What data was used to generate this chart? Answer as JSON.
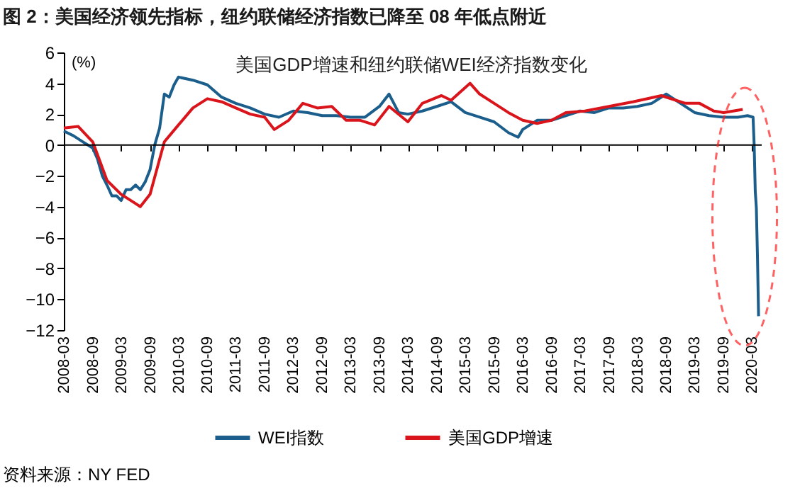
{
  "chart_data": {
    "type": "line",
    "title": "图 2：美国经济领先指标，纽约联储经济指数已降至 08 年低点附近",
    "subtitle": "美国GDP增速和纽约联储WEI经济指数变化",
    "ylabel": "(%)",
    "annotations": [
      "资料来源：NY FED"
    ],
    "xlim": [
      "2008-03-01",
      "2020-05-01"
    ],
    "xticks": [
      "2008-03",
      "2008-09",
      "2009-03",
      "2009-09",
      "2010-03",
      "2010-09",
      "2011-03",
      "2011-09",
      "2012-03",
      "2012-09",
      "2013-03",
      "2013-09",
      "2014-03",
      "2014-09",
      "2015-03",
      "2015-09",
      "2016-03",
      "2016-09",
      "2017-03",
      "2017-09",
      "2018-03",
      "2018-09",
      "2019-03",
      "2019-09",
      "2020-03"
    ],
    "ylim": [
      -12,
      6
    ],
    "yticks": [
      -12,
      -10,
      -8,
      -6,
      -4,
      -2,
      0,
      2,
      4,
      6
    ],
    "series": [
      {
        "name": "WEI指数",
        "color": "#1b5e8c",
        "x": [
          "2008-03",
          "2008-05",
          "2008-07",
          "2008-09",
          "2008-10",
          "2008-11",
          "2008-12",
          "2009-01",
          "2009-02",
          "2009-03",
          "2009-04",
          "2009-05",
          "2009-06",
          "2009-07",
          "2009-08",
          "2009-09",
          "2009-10",
          "2009-11",
          "2009-12",
          "2010-01",
          "2010-02",
          "2010-03",
          "2010-06",
          "2010-09",
          "2010-12",
          "2011-03",
          "2011-06",
          "2011-09",
          "2011-12",
          "2012-03",
          "2012-06",
          "2012-09",
          "2012-12",
          "2013-03",
          "2013-06",
          "2013-09",
          "2013-11",
          "2014-01",
          "2014-03",
          "2014-06",
          "2014-09",
          "2014-12",
          "2015-03",
          "2015-06",
          "2015-09",
          "2015-12",
          "2016-02",
          "2016-03",
          "2016-06",
          "2016-09",
          "2016-12",
          "2017-03",
          "2017-06",
          "2017-09",
          "2017-12",
          "2018-03",
          "2018-06",
          "2018-09",
          "2018-12",
          "2019-03",
          "2019-06",
          "2019-09",
          "2019-12",
          "2020-02",
          "2020-03-07",
          "2020-03-14",
          "2020-03-21",
          "2020-03-28",
          "2020-04-04",
          "2020-04-11"
        ],
        "values": [
          0.9,
          0.6,
          0.2,
          -0.2,
          -0.9,
          -2.0,
          -2.6,
          -3.3,
          -3.3,
          -3.6,
          -2.9,
          -2.9,
          -2.6,
          -2.9,
          -2.4,
          -1.6,
          0.0,
          1.1,
          3.3,
          3.1,
          3.9,
          4.4,
          4.2,
          3.9,
          3.1,
          2.7,
          2.4,
          2.0,
          1.8,
          2.2,
          2.1,
          1.9,
          1.9,
          1.8,
          1.8,
          2.5,
          3.3,
          2.1,
          2.0,
          2.2,
          2.5,
          2.8,
          2.1,
          1.8,
          1.5,
          0.8,
          0.5,
          1.0,
          1.6,
          1.6,
          1.9,
          2.2,
          2.1,
          2.4,
          2.4,
          2.5,
          2.7,
          3.3,
          2.7,
          2.1,
          1.9,
          1.8,
          1.8,
          1.9,
          1.8,
          0.0,
          -3.0,
          -4.1,
          -7.2,
          -11.1
        ]
      },
      {
        "name": "美国GDP增速",
        "color": "#d9141b",
        "x": [
          "2008-03",
          "2008-06",
          "2008-09",
          "2008-12",
          "2009-03",
          "2009-06",
          "2009-07",
          "2009-09",
          "2009-12",
          "2010-03",
          "2010-06",
          "2010-09",
          "2010-12",
          "2011-03",
          "2011-06",
          "2011-09",
          "2011-11",
          "2012-02",
          "2012-05",
          "2012-08",
          "2012-11",
          "2013-02",
          "2013-05",
          "2013-08",
          "2013-11",
          "2014-03",
          "2014-06",
          "2014-10",
          "2014-12",
          "2015-04",
          "2015-06",
          "2015-09",
          "2015-12",
          "2016-03",
          "2016-06",
          "2016-09",
          "2016-12",
          "2017-04",
          "2017-09",
          "2018-02",
          "2018-08",
          "2019-01",
          "2019-04",
          "2019-07",
          "2019-09",
          "2020-01"
        ],
        "values": [
          1.1,
          1.2,
          0.2,
          -2.3,
          -3.2,
          -3.8,
          -4.0,
          -3.2,
          0.2,
          1.3,
          2.4,
          3.0,
          2.8,
          2.4,
          2.0,
          1.8,
          1.0,
          1.6,
          2.7,
          2.4,
          2.5,
          1.6,
          1.6,
          1.3,
          2.5,
          1.5,
          2.7,
          3.2,
          2.9,
          4.0,
          3.3,
          2.7,
          2.1,
          1.6,
          1.4,
          1.6,
          2.1,
          2.2,
          2.5,
          2.8,
          3.2,
          2.7,
          2.7,
          2.2,
          2.1,
          2.3
        ]
      }
    ],
    "ref_lines": [
      {
        "axis": "y",
        "value": 0,
        "color": "#000000"
      }
    ],
    "legend": "bottom",
    "grid": false,
    "marker": "none",
    "line_style": "solid"
  }
}
